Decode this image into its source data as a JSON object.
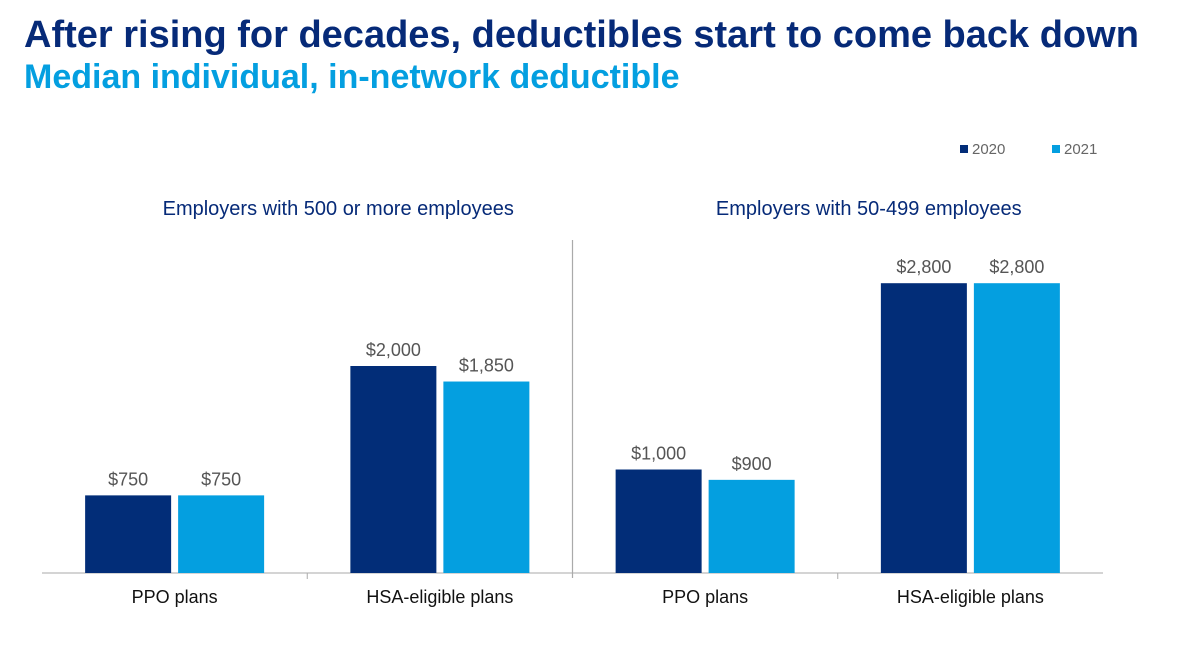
{
  "title": "After rising for decades, deductibles start to come back down",
  "subtitle": "Median individual, in-network deductible",
  "colors": {
    "title": "#062a78",
    "subtitle": "#049fe0",
    "series_2020": "#022d78",
    "series_2021": "#049fe0",
    "group_title": "#062a78",
    "data_label": "#555555",
    "axis": "#aaaaaa"
  },
  "chart_data": {
    "type": "bar",
    "legend": {
      "position": "top-right",
      "entries": [
        "2020",
        "2021"
      ]
    },
    "series_names": [
      "2020",
      "2021"
    ],
    "groups": [
      {
        "title": "Employers with 500 or more employees",
        "categories": [
          "PPO plans",
          "HSA-eligible plans"
        ],
        "series": [
          {
            "name": "2020",
            "values": [
              750,
              2000
            ],
            "labels": [
              "$750",
              "$2,000"
            ]
          },
          {
            "name": "2021",
            "values": [
              750,
              1850
            ],
            "labels": [
              "$750",
              "$1,850"
            ]
          }
        ]
      },
      {
        "title": "Employers with 50-499 employees",
        "categories": [
          "PPO plans",
          "HSA-eligible plans"
        ],
        "series": [
          {
            "name": "2020",
            "values": [
              1000,
              2800
            ],
            "labels": [
              "$1,000",
              "$2,800"
            ]
          },
          {
            "name": "2021",
            "values": [
              900,
              2800
            ],
            "labels": [
              "$900",
              "$2,800"
            ]
          }
        ]
      }
    ],
    "ylim": [
      0,
      3000
    ],
    "grid": false
  }
}
